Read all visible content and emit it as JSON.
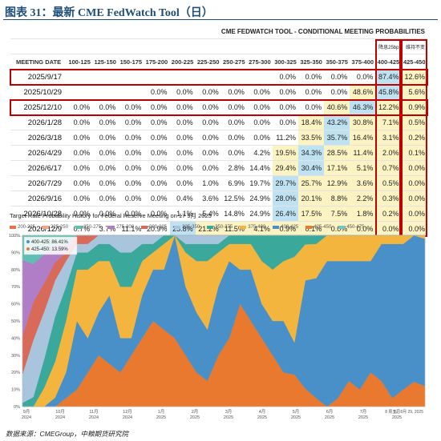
{
  "figure": {
    "title": "图表 31：最新 CME FedWatch Tool（日）",
    "source": "数据来源：CMEGroup，中粮期货研究院"
  },
  "table": {
    "title": "CME FEDWATCH TOOL - CONDITIONAL MEETING PROBABILITIES",
    "note_cut": "降息25bp",
    "note_hold": "维持不变",
    "date_header": "MEETING DATE",
    "columns": [
      "100-125",
      "125-150",
      "150-175",
      "175-200",
      "200-225",
      "225-250",
      "250-275",
      "275-300",
      "300-325",
      "325-350",
      "350-375",
      "375-400",
      "400-425",
      "425-450"
    ],
    "rows": [
      {
        "date": "2025/9/17",
        "cells": [
          "",
          "",
          "",
          "",
          "",
          "",
          "",
          "",
          "0.0%",
          "0.0%",
          "0.0%",
          "0.0%",
          "87.4%",
          "12.6%"
        ]
      },
      {
        "date": "2025/10/29",
        "cells": [
          "",
          "",
          "",
          "0.0%",
          "0.0%",
          "0.0%",
          "0.0%",
          "0.0%",
          "0.0%",
          "0.0%",
          "0.0%",
          "48.6%",
          "45.8%",
          "5.6%"
        ]
      },
      {
        "date": "2025/12/10",
        "cells": [
          "0.0%",
          "0.0%",
          "0.0%",
          "0.0%",
          "0.0%",
          "0.0%",
          "0.0%",
          "0.0%",
          "0.0%",
          "0.0%",
          "40.6%",
          "46.3%",
          "12.2%",
          "0.9%"
        ]
      },
      {
        "date": "2026/1/28",
        "cells": [
          "0.0%",
          "0.0%",
          "0.0%",
          "0.0%",
          "0.0%",
          "0.0%",
          "0.0%",
          "0.0%",
          "0.0%",
          "18.4%",
          "43.2%",
          "30.8%",
          "7.1%",
          "0.5%"
        ]
      },
      {
        "date": "2026/3/18",
        "cells": [
          "0.0%",
          "0.0%",
          "0.0%",
          "0.0%",
          "0.0%",
          "0.0%",
          "0.0%",
          "0.0%",
          "11.2%",
          "33.5%",
          "35.7%",
          "16.4%",
          "3.1%",
          "0.2%"
        ]
      },
      {
        "date": "2026/4/29",
        "cells": [
          "0.0%",
          "0.0%",
          "0.0%",
          "0.0%",
          "0.0%",
          "0.0%",
          "0.0%",
          "4.2%",
          "19.5%",
          "34.3%",
          "28.5%",
          "11.4%",
          "2.0%",
          "0.1%"
        ]
      },
      {
        "date": "2026/6/17",
        "cells": [
          "0.0%",
          "0.0%",
          "0.0%",
          "0.0%",
          "0.0%",
          "0.0%",
          "2.8%",
          "14.4%",
          "29.4%",
          "30.4%",
          "17.1%",
          "5.1%",
          "0.7%",
          "0.0%"
        ]
      },
      {
        "date": "2026/7/29",
        "cells": [
          "0.0%",
          "0.0%",
          "0.0%",
          "0.0%",
          "0.0%",
          "1.0%",
          "6.9%",
          "19.7%",
          "29.7%",
          "25.7%",
          "12.9%",
          "3.6%",
          "0.5%",
          "0.0%"
        ]
      },
      {
        "date": "2026/9/16",
        "cells": [
          "0.0%",
          "0.0%",
          "0.0%",
          "0.0%",
          "0.4%",
          "3.6%",
          "12.5%",
          "24.9%",
          "28.0%",
          "20.1%",
          "8.8%",
          "2.2%",
          "0.3%",
          "0.0%"
        ]
      },
      {
        "date": "2026/10/28",
        "cells": [
          "0.0%",
          "0.0%",
          "0.0%",
          "0.0%",
          "1.1%",
          "5.4%",
          "14.8%",
          "24.9%",
          "26.4%",
          "17.5%",
          "7.5%",
          "1.8%",
          "0.2%",
          "0.0%"
        ]
      },
      {
        "date": "2026/12/9",
        "cells": [
          "0.7%",
          "3.7%",
          "11.1%",
          "20.9%",
          "25.8%",
          "21.2%",
          "11.5%",
          "4.1%",
          "0.9%",
          "0.1%",
          "0.0%",
          "0.0%",
          "0.0%",
          "0.0%"
        ]
      }
    ],
    "highlight_blue": [
      [
        0,
        12
      ],
      [
        1,
        12
      ],
      [
        2,
        11
      ],
      [
        3,
        10
      ],
      [
        4,
        10
      ],
      [
        5,
        9
      ],
      [
        6,
        9
      ],
      [
        7,
        8
      ],
      [
        8,
        8
      ],
      [
        9,
        8
      ],
      [
        10,
        4
      ]
    ],
    "highlight_yellow": [
      [
        0,
        13
      ],
      [
        1,
        11
      ],
      [
        1,
        13
      ],
      [
        2,
        10
      ],
      [
        2,
        12
      ],
      [
        2,
        13
      ],
      [
        3,
        9
      ],
      [
        3,
        11
      ],
      [
        3,
        12
      ],
      [
        3,
        13
      ],
      [
        4,
        9
      ],
      [
        4,
        11
      ],
      [
        4,
        12
      ],
      [
        4,
        13
      ],
      [
        5,
        8
      ],
      [
        5,
        10
      ],
      [
        5,
        11
      ],
      [
        5,
        12
      ],
      [
        5,
        13
      ],
      [
        6,
        8
      ],
      [
        6,
        10
      ],
      [
        6,
        11
      ],
      [
        6,
        12
      ],
      [
        6,
        13
      ],
      [
        7,
        9
      ],
      [
        7,
        10
      ],
      [
        7,
        11
      ],
      [
        7,
        12
      ],
      [
        7,
        13
      ],
      [
        8,
        9
      ],
      [
        8,
        10
      ],
      [
        8,
        11
      ],
      [
        8,
        12
      ],
      [
        8,
        13
      ],
      [
        9,
        8
      ],
      [
        9,
        9
      ],
      [
        9,
        10
      ],
      [
        9,
        11
      ],
      [
        9,
        12
      ],
      [
        9,
        13
      ],
      [
        10,
        5
      ],
      [
        10,
        6
      ],
      [
        10,
        7
      ],
      [
        10,
        8
      ],
      [
        10,
        9
      ],
      [
        10,
        10
      ],
      [
        10,
        11
      ],
      [
        10,
        12
      ],
      [
        10,
        13
      ]
    ],
    "highlight_green": [
      [
        1,
        12
      ],
      [
        3,
        10
      ],
      [
        4,
        10
      ]
    ]
  },
  "chart_data": {
    "type": "area",
    "title": "Target Rate Probability History for Federal Reserve Meeting on 17 9月 2025",
    "legend": [
      {
        "name": "200-225",
        "color": "#e8704a"
      },
      {
        "name": "225-250",
        "color": "#f2a488"
      },
      {
        "name": "250-275",
        "color": "#5fbfb3"
      },
      {
        "name": "275-300",
        "color": "#b07dc7"
      },
      {
        "name": "300-325",
        "color": "#d86a5a"
      },
      {
        "name": "325-350",
        "color": "#a9c4dd"
      },
      {
        "name": "350-375",
        "color": "#3aa89a"
      },
      {
        "name": "375-400",
        "color": "#f4b53f"
      },
      {
        "name": "400-425",
        "color": "#4a90c8"
      },
      {
        "name": "425-450",
        "color": "#e8792e"
      },
      {
        "name": "450-475",
        "color": "#6fc7c2"
      }
    ],
    "tooltip": [
      {
        "label": "400-425: 86.41%",
        "color": "#4a90c8"
      },
      {
        "label": "425-450: 13.59%",
        "color": "#e8792e"
      }
    ],
    "x_ticks": [
      {
        "top": "9月",
        "bottom": "2024"
      },
      {
        "top": "10月",
        "bottom": "2024"
      },
      {
        "top": "11月",
        "bottom": "2024"
      },
      {
        "top": "12月",
        "bottom": "2024"
      },
      {
        "top": "1月",
        "bottom": "2025"
      },
      {
        "top": "2月",
        "bottom": "2025"
      },
      {
        "top": "3月",
        "bottom": "2025"
      },
      {
        "top": "4月",
        "bottom": "2025"
      },
      {
        "top": "5月",
        "bottom": "2025"
      },
      {
        "top": "6月",
        "bottom": "2025"
      },
      {
        "top": "7月",
        "bottom": "2025"
      },
      {
        "top": "8月",
        "bottom": "2025"
      }
    ],
    "x_end_label": "8 周五，8月 29, 2025",
    "y_ticks": [
      "0%",
      "10%",
      "20%",
      "30%",
      "40%",
      "50%",
      "60%",
      "70%",
      "80%",
      "90%",
      "100%"
    ],
    "ylim": [
      0,
      100
    ],
    "series_keypoints": [
      {
        "name": "425-450",
        "color": "#e8792e",
        "values": [
          0,
          0,
          0,
          0,
          5,
          10,
          20,
          30,
          25,
          20,
          30,
          40,
          50,
          45,
          40,
          30,
          20,
          15,
          30,
          40,
          60,
          50,
          40,
          30,
          20,
          15,
          10,
          5,
          0,
          5,
          15,
          10,
          20,
          15,
          5,
          10,
          15,
          12
        ]
      },
      {
        "name": "400-425",
        "color": "#4a90c8",
        "values": [
          0,
          0,
          0,
          5,
          15,
          40,
          20,
          25,
          40,
          20,
          10,
          25,
          30,
          35,
          60,
          40,
          35,
          30,
          40,
          45,
          20,
          30,
          20,
          20,
          30,
          15,
          60,
          70,
          85,
          80,
          70,
          75,
          65,
          80,
          90,
          85,
          88,
          86
        ]
      },
      {
        "name": "375-400",
        "color": "#f4b53f",
        "values": [
          0,
          0,
          10,
          20,
          30,
          30,
          40,
          30,
          20,
          30,
          30,
          20,
          10,
          15,
          0,
          20,
          30,
          40,
          20,
          10,
          15,
          15,
          25,
          30,
          35,
          40,
          20,
          20,
          15,
          15,
          15,
          15,
          15,
          5,
          5,
          5,
          0,
          2
        ]
      },
      {
        "name": "350-375",
        "color": "#3aa89a",
        "values": [
          2,
          5,
          15,
          25,
          20,
          10,
          10,
          10,
          10,
          20,
          20,
          10,
          5,
          5,
          0,
          5,
          10,
          10,
          5,
          5,
          5,
          5,
          15,
          20,
          15,
          10,
          5,
          5,
          0,
          0,
          0,
          0,
          0,
          0,
          0,
          0,
          0,
          0
        ]
      },
      {
        "name": "325-350",
        "color": "#a9c4dd",
        "values": [
          15,
          30,
          25,
          20,
          15,
          5,
          5,
          5,
          5,
          10,
          10,
          5,
          5,
          0,
          0,
          5,
          5,
          5,
          5,
          0,
          0,
          0,
          0,
          0,
          0,
          0,
          0,
          0,
          0,
          0,
          0,
          0,
          0,
          0,
          0,
          0,
          0,
          0
        ]
      },
      {
        "name": "300-325",
        "color": "#d86a5a",
        "values": [
          20,
          20,
          15,
          10,
          5,
          5,
          5,
          0,
          0,
          0,
          0,
          0,
          0,
          0,
          0,
          0,
          0,
          0,
          0,
          0,
          0,
          0,
          0,
          0,
          0,
          0,
          0,
          0,
          0,
          0,
          0,
          0,
          0,
          0,
          0,
          0,
          0,
          0
        ]
      },
      {
        "name": "275-300",
        "color": "#b07dc7",
        "values": [
          40,
          20,
          15,
          10,
          5,
          0,
          0,
          0,
          0,
          0,
          0,
          0,
          0,
          0,
          0,
          0,
          0,
          0,
          0,
          0,
          0,
          0,
          0,
          0,
          0,
          0,
          0,
          0,
          0,
          0,
          0,
          0,
          0,
          0,
          0,
          0,
          0,
          0
        ]
      },
      {
        "name": "250-275",
        "color": "#5fbfb3",
        "values": [
          13,
          15,
          10,
          5,
          5,
          0,
          0,
          0,
          0,
          0,
          0,
          0,
          0,
          0,
          0,
          0,
          0,
          0,
          0,
          0,
          0,
          0,
          0,
          0,
          0,
          0,
          0,
          0,
          0,
          0,
          0,
          0,
          0,
          0,
          0,
          0,
          0,
          0
        ]
      }
    ]
  }
}
